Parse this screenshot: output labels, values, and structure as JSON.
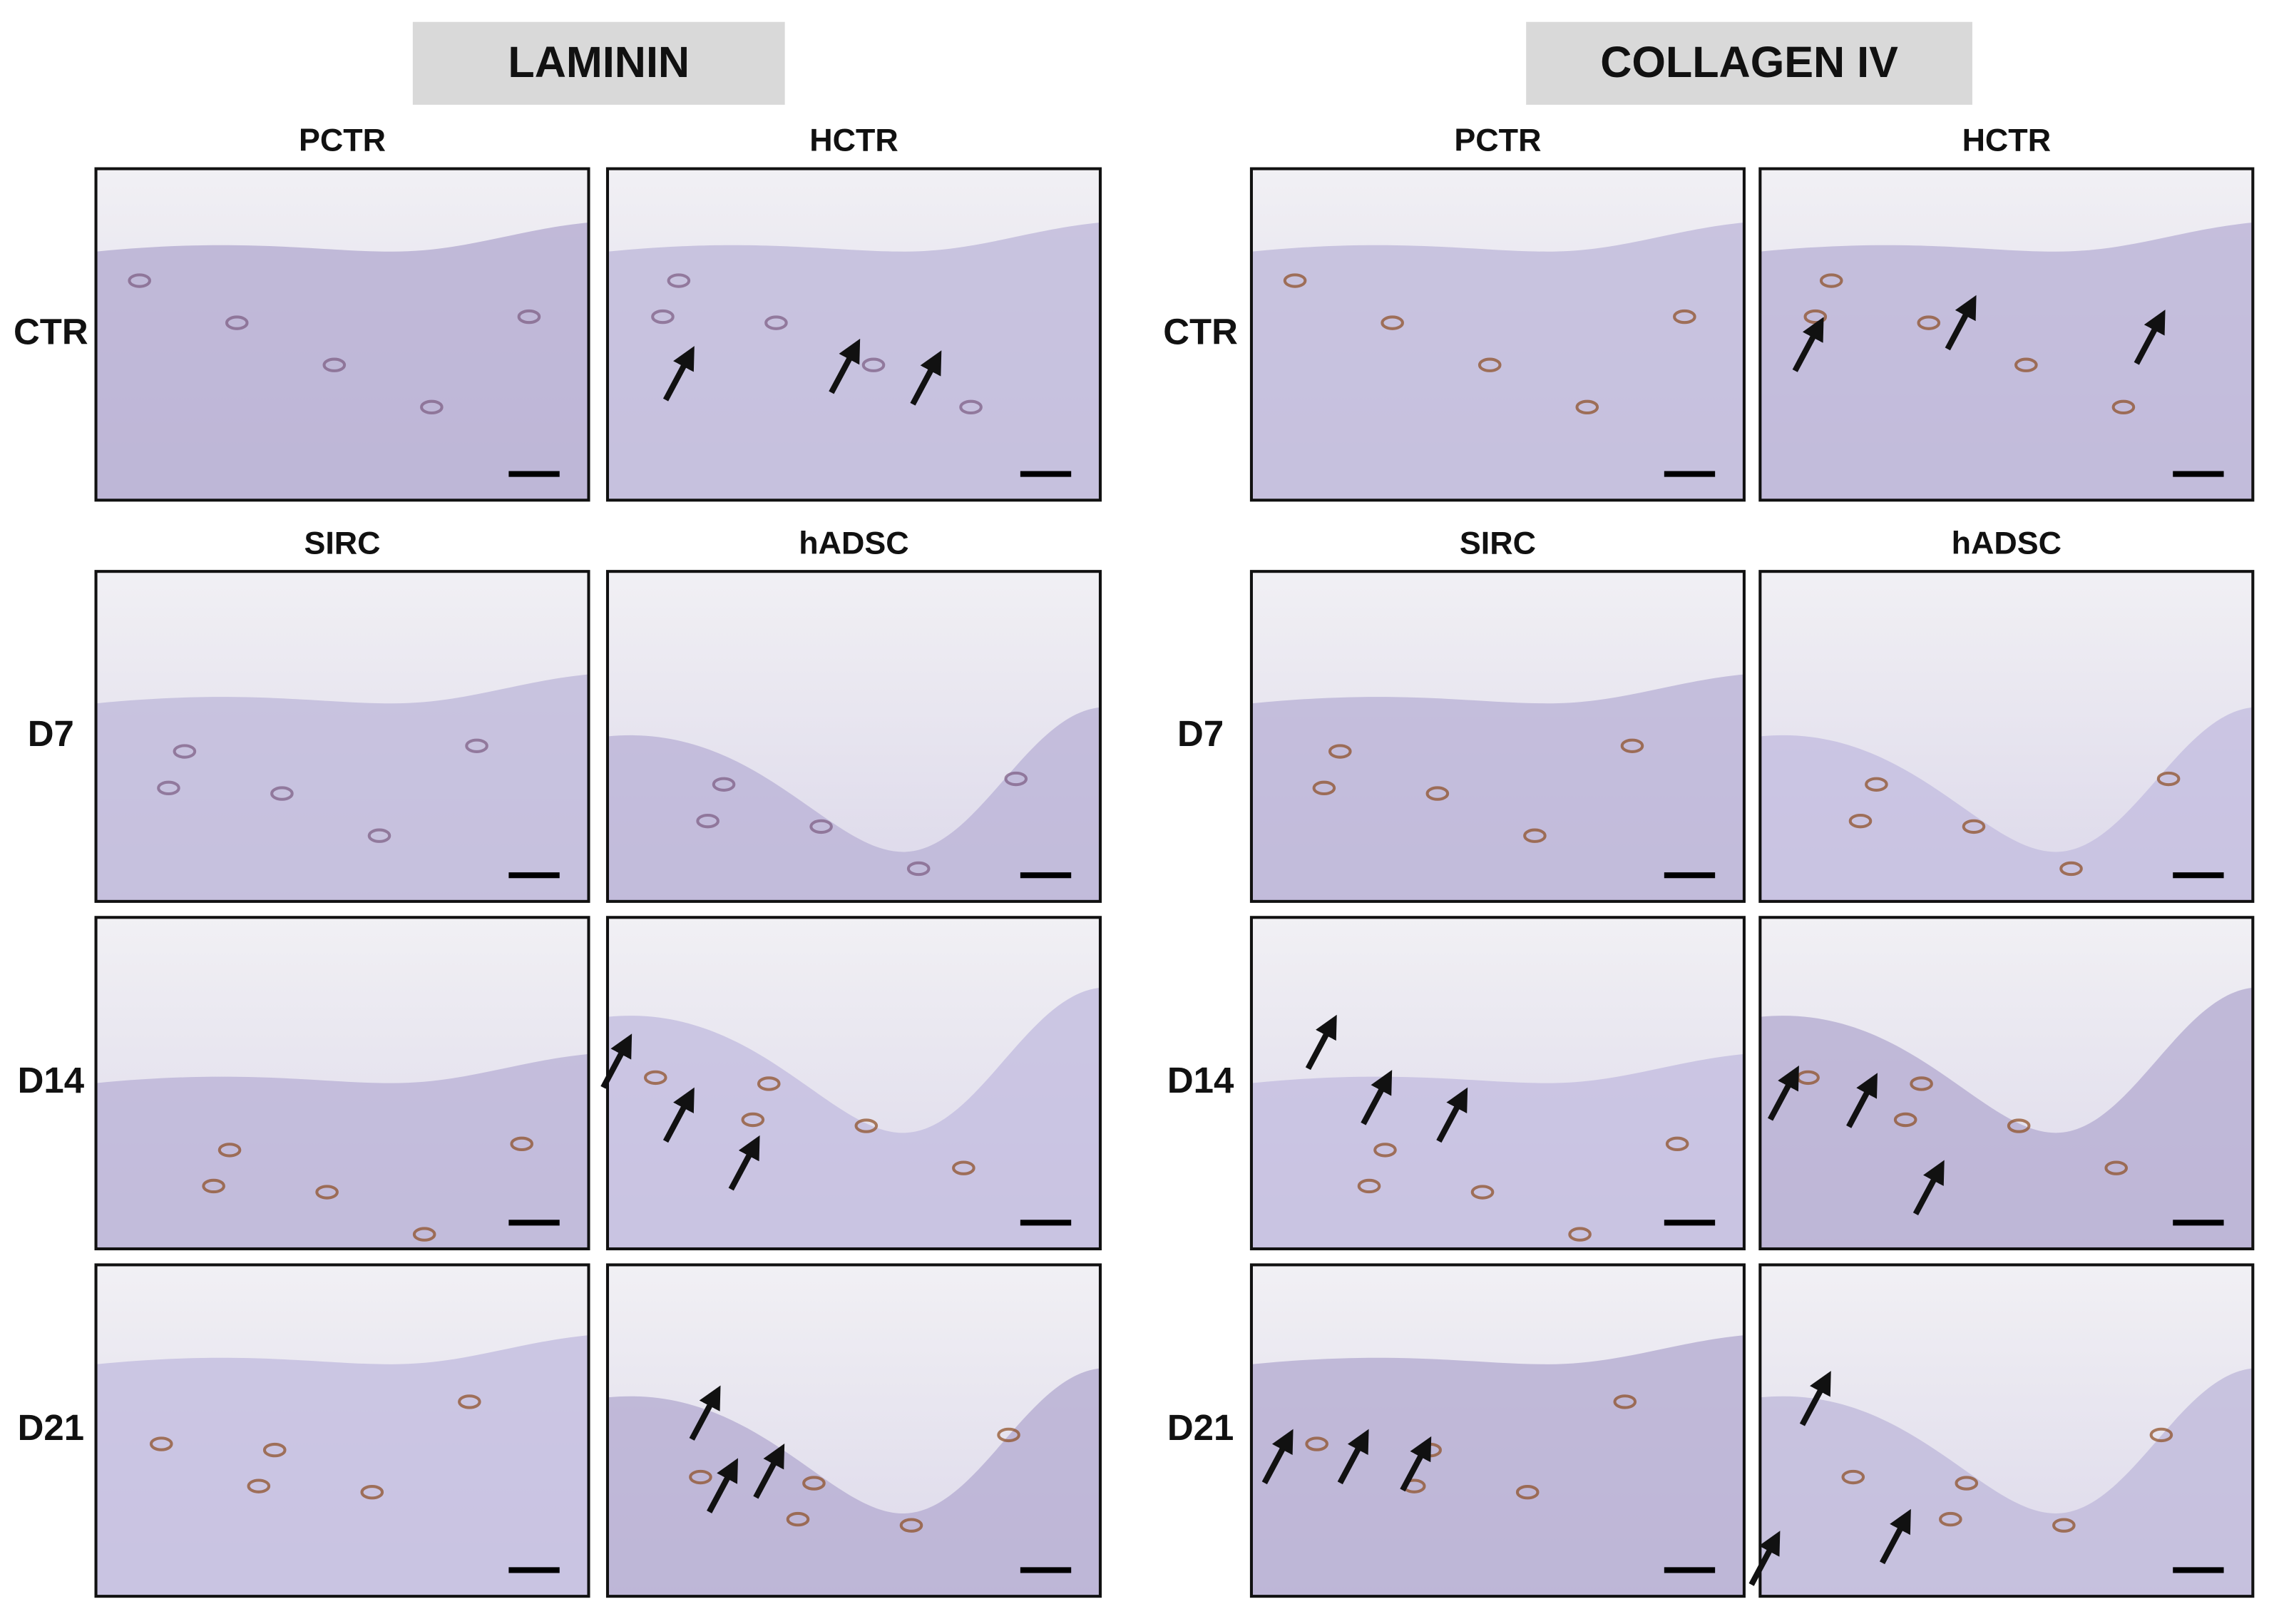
{
  "groups": [
    {
      "title": "LAMININ",
      "control_columns": [
        "PCTR",
        "HCTR"
      ],
      "treated_columns": [
        "SIRC",
        "hADSC"
      ],
      "rows": [
        "CTR",
        "D7",
        "D14",
        "D21"
      ]
    },
    {
      "title": "COLLAGEN IV",
      "control_columns": [
        "PCTR",
        "HCTR"
      ],
      "treated_columns": [
        "SIRC",
        "hADSC"
      ],
      "rows": [
        "CTR",
        "D7",
        "D14",
        "D21"
      ]
    }
  ]
}
